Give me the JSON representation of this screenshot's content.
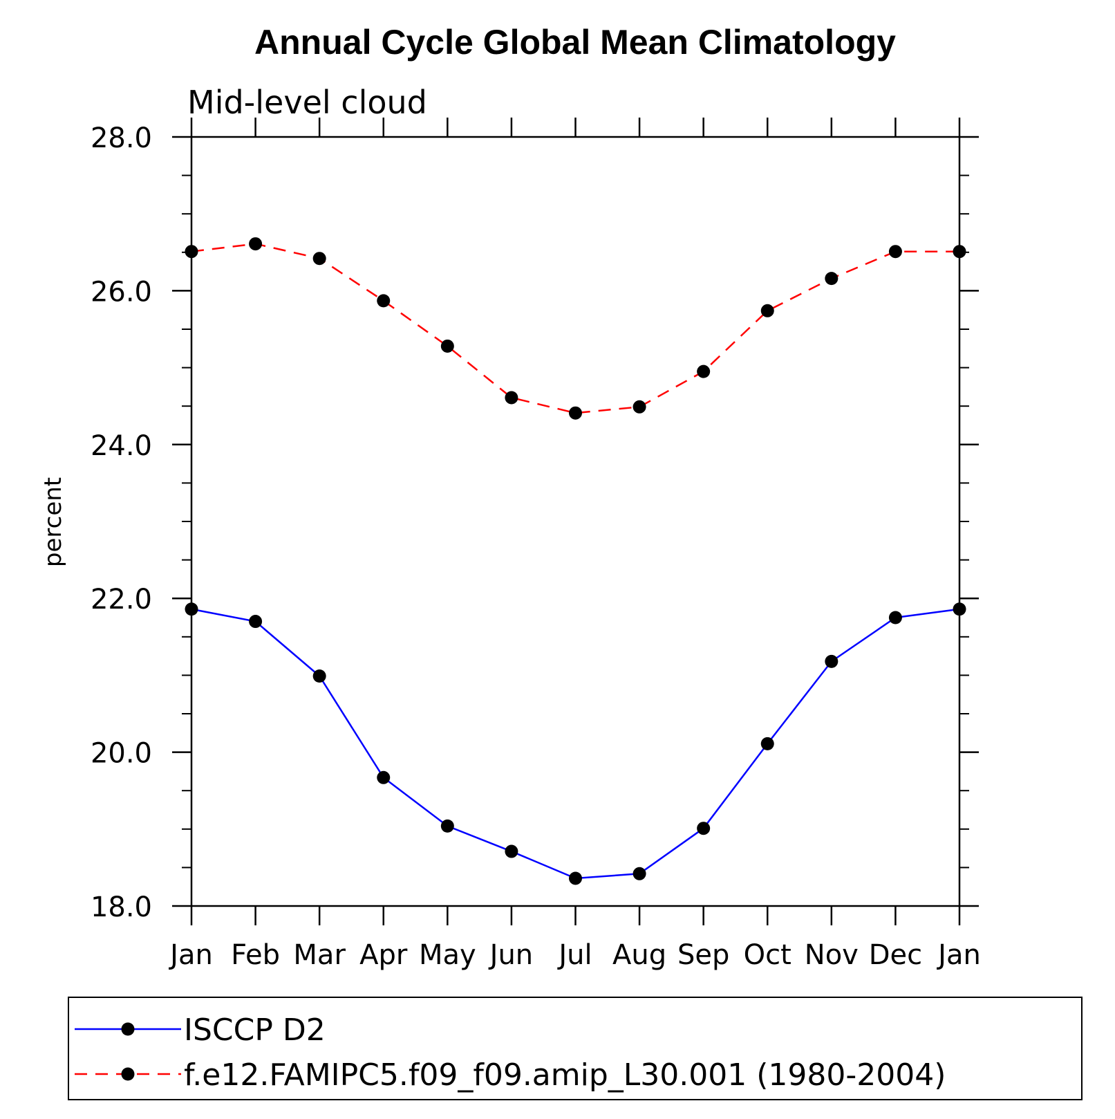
{
  "chart_data": {
    "type": "line",
    "title": "Annual Cycle Global Mean Climatology",
    "subtitle": "Mid-level cloud",
    "xlabel": "",
    "ylabel": "percent",
    "categories": [
      "Jan",
      "Feb",
      "Mar",
      "Apr",
      "May",
      "Jun",
      "Jul",
      "Aug",
      "Sep",
      "Oct",
      "Nov",
      "Dec",
      "Jan"
    ],
    "ylim": [
      18.0,
      28.0
    ],
    "yticks": [
      "18.0",
      "20.0",
      "22.0",
      "24.0",
      "26.0",
      "28.0"
    ],
    "ytick_values": [
      18.0,
      20.0,
      22.0,
      24.0,
      26.0,
      28.0
    ],
    "grid": false,
    "legend_position": "bottom",
    "series": [
      {
        "name": "ISCCP D2",
        "color": "#0000ff",
        "dash": "solid",
        "marker": "filled-circle",
        "values": [
          21.86,
          21.7,
          20.99,
          19.67,
          19.04,
          18.71,
          18.36,
          18.42,
          19.01,
          20.11,
          21.18,
          21.75,
          21.86
        ]
      },
      {
        "name": "f.e12.FAMIPC5.f09_f09.amip_L30.001 (1980-2004)",
        "color": "#ff0000",
        "dash": "dashed",
        "marker": "filled-circle",
        "values": [
          26.51,
          26.61,
          26.42,
          25.87,
          25.28,
          24.61,
          24.41,
          24.49,
          24.95,
          25.74,
          26.16,
          26.51,
          26.51
        ]
      }
    ]
  }
}
